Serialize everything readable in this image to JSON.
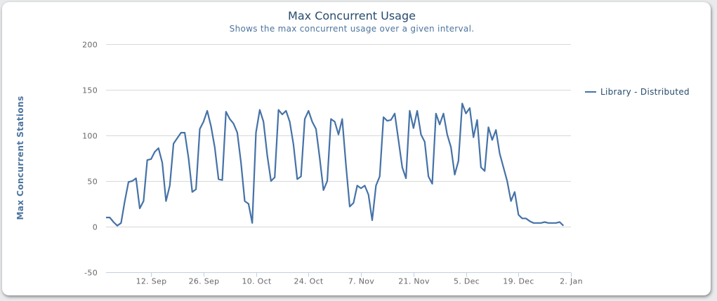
{
  "chart_data": {
    "type": "line",
    "title": "Max Concurrent Usage",
    "subtitle": "Shows the max concurrent usage over a given interval.",
    "ylabel": "Max Concurrent Stations",
    "xlabel": "",
    "ylim": [
      -50,
      200
    ],
    "yticks": [
      200,
      150,
      100,
      50,
      0,
      -50
    ],
    "x_range": [
      "2023-08-31",
      "2024-01-02"
    ],
    "xticks": [
      {
        "date": "2023-09-12",
        "label": "12. Sep"
      },
      {
        "date": "2023-09-26",
        "label": "26. Sep"
      },
      {
        "date": "2023-10-10",
        "label": "10. Oct"
      },
      {
        "date": "2023-10-24",
        "label": "24. Oct"
      },
      {
        "date": "2023-11-07",
        "label": "7. Nov"
      },
      {
        "date": "2023-11-21",
        "label": "21. Nov"
      },
      {
        "date": "2023-12-05",
        "label": "5. Dec"
      },
      {
        "date": "2023-12-19",
        "label": "19. Dec"
      },
      {
        "date": "2024-01-02",
        "label": "2. Jan"
      }
    ],
    "grid": true,
    "legend_position": "right",
    "series": [
      {
        "name": "Library - Distributed",
        "color": "#4572a7",
        "points": [
          [
            "2023-08-31",
            10
          ],
          [
            "2023-09-01",
            10
          ],
          [
            "2023-09-02",
            5
          ],
          [
            "2023-09-03",
            1
          ],
          [
            "2023-09-04",
            4
          ],
          [
            "2023-09-05",
            28
          ],
          [
            "2023-09-06",
            49
          ],
          [
            "2023-09-07",
            50
          ],
          [
            "2023-09-08",
            53
          ],
          [
            "2023-09-09",
            20
          ],
          [
            "2023-09-10",
            28
          ],
          [
            "2023-09-11",
            73
          ],
          [
            "2023-09-12",
            74
          ],
          [
            "2023-09-13",
            82
          ],
          [
            "2023-09-14",
            86
          ],
          [
            "2023-09-15",
            70
          ],
          [
            "2023-09-16",
            28
          ],
          [
            "2023-09-17",
            45
          ],
          [
            "2023-09-18",
            91
          ],
          [
            "2023-09-19",
            97
          ],
          [
            "2023-09-20",
            103
          ],
          [
            "2023-09-21",
            103
          ],
          [
            "2023-09-22",
            75
          ],
          [
            "2023-09-23",
            38
          ],
          [
            "2023-09-24",
            41
          ],
          [
            "2023-09-25",
            107
          ],
          [
            "2023-09-26",
            115
          ],
          [
            "2023-09-27",
            127
          ],
          [
            "2023-09-28",
            110
          ],
          [
            "2023-09-29",
            87
          ],
          [
            "2023-09-30",
            52
          ],
          [
            "2023-10-01",
            51
          ],
          [
            "2023-10-02",
            126
          ],
          [
            "2023-10-03",
            118
          ],
          [
            "2023-10-04",
            113
          ],
          [
            "2023-10-05",
            103
          ],
          [
            "2023-10-06",
            70
          ],
          [
            "2023-10-07",
            28
          ],
          [
            "2023-10-08",
            25
          ],
          [
            "2023-10-09",
            4
          ],
          [
            "2023-10-10",
            103
          ],
          [
            "2023-10-11",
            128
          ],
          [
            "2023-10-12",
            115
          ],
          [
            "2023-10-13",
            78
          ],
          [
            "2023-10-14",
            50
          ],
          [
            "2023-10-15",
            54
          ],
          [
            "2023-10-16",
            128
          ],
          [
            "2023-10-17",
            123
          ],
          [
            "2023-10-18",
            127
          ],
          [
            "2023-10-19",
            115
          ],
          [
            "2023-10-20",
            90
          ],
          [
            "2023-10-21",
            52
          ],
          [
            "2023-10-22",
            55
          ],
          [
            "2023-10-23",
            118
          ],
          [
            "2023-10-24",
            127
          ],
          [
            "2023-10-25",
            115
          ],
          [
            "2023-10-26",
            107
          ],
          [
            "2023-10-27",
            75
          ],
          [
            "2023-10-28",
            40
          ],
          [
            "2023-10-29",
            50
          ],
          [
            "2023-10-30",
            118
          ],
          [
            "2023-10-31",
            115
          ],
          [
            "2023-11-01",
            101
          ],
          [
            "2023-11-02",
            118
          ],
          [
            "2023-11-03",
            67
          ],
          [
            "2023-11-04",
            22
          ],
          [
            "2023-11-05",
            26
          ],
          [
            "2023-11-06",
            45
          ],
          [
            "2023-11-07",
            42
          ],
          [
            "2023-11-08",
            45
          ],
          [
            "2023-11-09",
            35
          ],
          [
            "2023-11-10",
            7
          ],
          [
            "2023-11-11",
            45
          ],
          [
            "2023-11-12",
            55
          ],
          [
            "2023-11-13",
            120
          ],
          [
            "2023-11-14",
            116
          ],
          [
            "2023-11-15",
            117
          ],
          [
            "2023-11-16",
            124
          ],
          [
            "2023-11-17",
            95
          ],
          [
            "2023-11-18",
            65
          ],
          [
            "2023-11-19",
            53
          ],
          [
            "2023-11-20",
            127
          ],
          [
            "2023-11-21",
            108
          ],
          [
            "2023-11-22",
            127
          ],
          [
            "2023-11-23",
            101
          ],
          [
            "2023-11-24",
            93
          ],
          [
            "2023-11-25",
            55
          ],
          [
            "2023-11-26",
            47
          ],
          [
            "2023-11-27",
            124
          ],
          [
            "2023-11-28",
            112
          ],
          [
            "2023-11-29",
            124
          ],
          [
            "2023-11-30",
            101
          ],
          [
            "2023-12-01",
            87
          ],
          [
            "2023-12-02",
            57
          ],
          [
            "2023-12-03",
            72
          ],
          [
            "2023-12-04",
            135
          ],
          [
            "2023-12-05",
            124
          ],
          [
            "2023-12-06",
            130
          ],
          [
            "2023-12-07",
            98
          ],
          [
            "2023-12-08",
            117
          ],
          [
            "2023-12-09",
            65
          ],
          [
            "2023-12-10",
            61
          ],
          [
            "2023-12-11",
            109
          ],
          [
            "2023-12-12",
            95
          ],
          [
            "2023-12-13",
            106
          ],
          [
            "2023-12-14",
            80
          ],
          [
            "2023-12-15",
            65
          ],
          [
            "2023-12-16",
            50
          ],
          [
            "2023-12-17",
            28
          ],
          [
            "2023-12-18",
            38
          ],
          [
            "2023-12-19",
            13
          ],
          [
            "2023-12-20",
            9
          ],
          [
            "2023-12-21",
            9
          ],
          [
            "2023-12-22",
            6
          ],
          [
            "2023-12-23",
            4
          ],
          [
            "2023-12-24",
            4
          ],
          [
            "2023-12-25",
            4
          ],
          [
            "2023-12-26",
            5
          ],
          [
            "2023-12-27",
            4
          ],
          [
            "2023-12-28",
            4
          ],
          [
            "2023-12-29",
            4
          ],
          [
            "2023-12-30",
            5
          ],
          [
            "2023-12-31",
            1
          ]
        ]
      }
    ]
  }
}
